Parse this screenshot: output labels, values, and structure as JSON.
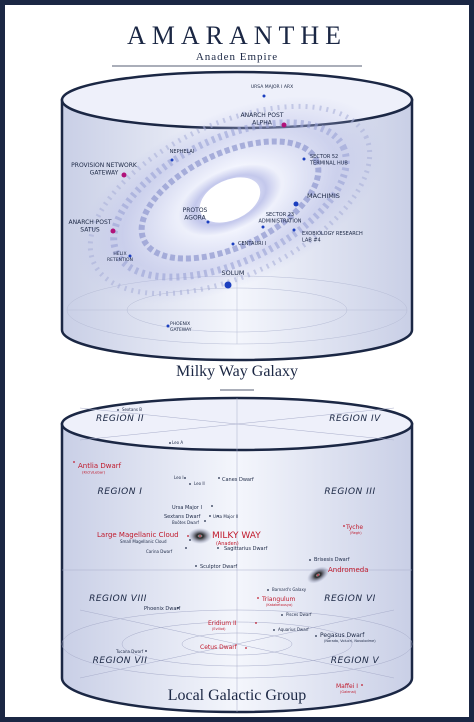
{
  "header": {
    "title": "AMARANTHE",
    "subtitle": "Anaden Empire"
  },
  "galaxy_map": {
    "caption": "Milky Way Galaxy",
    "locations": [
      {
        "label": [
          "URSA MAJOR I ARX"
        ]
      },
      {
        "label": [
          "ANARCH POST",
          "ALPHA"
        ]
      },
      {
        "label": [
          "NEPHELAI"
        ]
      },
      {
        "label": [
          "SECTOR 52",
          "TERMINAL HUB"
        ]
      },
      {
        "label": [
          "PROVISION NETWORK",
          "GATEWAY"
        ]
      },
      {
        "label": [
          "MACHIMIS"
        ]
      },
      {
        "label": [
          "PROTOS",
          "AGORA"
        ]
      },
      {
        "label": [
          "SECTOR 23",
          "ADMINISTRATION"
        ]
      },
      {
        "label": [
          "ANARCH POST",
          "SATUS"
        ]
      },
      {
        "label": [
          "EXOBIOLOGY RESEARCH",
          "LAB #4"
        ]
      },
      {
        "label": [
          "CENTAURI I"
        ]
      },
      {
        "label": [
          "HELIX",
          "RETENTION"
        ]
      },
      {
        "label": [
          "SOLUM"
        ]
      },
      {
        "label": [
          "PHOENIX",
          "GATEWAY"
        ]
      }
    ]
  },
  "local_group": {
    "caption": "Local Galactic Group",
    "regions": [
      "REGION II",
      "REGION IV",
      "REGION I",
      "REGION III",
      "REGION VIII",
      "REGION VI",
      "REGION VII",
      "REGION V"
    ],
    "galaxies": [
      {
        "name": "Sextans B"
      },
      {
        "name": "Leo A"
      },
      {
        "name": "Antlia Dwarf",
        "note": "(Kich/Lebar)"
      },
      {
        "name": "Leo I"
      },
      {
        "name": "Leo II"
      },
      {
        "name": "Canes Dwarf"
      },
      {
        "name": "Ursa Major I"
      },
      {
        "name": "Sextans Dwarf"
      },
      {
        "name": "Ursa Major II"
      },
      {
        "name": "Boötes Dwarf"
      },
      {
        "name": "Large Magellanic Cloud"
      },
      {
        "name": "MILKY WAY",
        "note": "(Anaden)"
      },
      {
        "name": "Small Magellanic Cloud"
      },
      {
        "name": "Carina Dwarf"
      },
      {
        "name": "Sagittarius Dwarf"
      },
      {
        "name": "Tyche",
        "note": "(Regh)"
      },
      {
        "name": "Sculptor Dwarf"
      },
      {
        "name": "Brisesis Dwarf"
      },
      {
        "name": "Andromeda"
      },
      {
        "name": "Barnard's Galaxy"
      },
      {
        "name": "Triangulum",
        "note": "(Kataketousya)"
      },
      {
        "name": "Phoenix Dwarf"
      },
      {
        "name": "Pisces Dwarf"
      },
      {
        "name": "Eridium II",
        "note": "(Evlliot)"
      },
      {
        "name": "Aquarius Dwarf"
      },
      {
        "name": "Pegasus Dwarf",
        "note": "(Narada, Volucri, Novolodme)"
      },
      {
        "name": "Tucana Dwarf"
      },
      {
        "name": "Cetus Dwarf"
      },
      {
        "name": "Maffei I",
        "note": "(Galenai)"
      }
    ]
  }
}
